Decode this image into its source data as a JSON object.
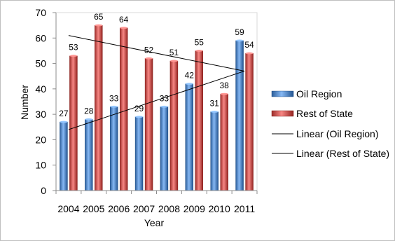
{
  "chart_data": {
    "type": "bar",
    "title": "",
    "xlabel": "Year",
    "ylabel": "Number",
    "categories": [
      "2004",
      "2005",
      "2006",
      "2007",
      "2008",
      "2009",
      "2010",
      "2011"
    ],
    "ylim": [
      0,
      70
    ],
    "yticks": [
      0,
      10,
      20,
      30,
      40,
      50,
      60,
      70
    ],
    "grid": false,
    "legend_position": "right",
    "series": [
      {
        "name": "Oil Region",
        "color": "#4f81bd",
        "values": [
          27,
          28,
          33,
          29,
          33,
          42,
          31,
          59
        ]
      },
      {
        "name": "Rest of State",
        "color": "#c0504d",
        "values": [
          53,
          65,
          64,
          52,
          51,
          55,
          38,
          54
        ]
      }
    ],
    "trendlines": [
      {
        "name": "Linear (Oil Region)",
        "series": "Oil Region",
        "type": "linear",
        "start": 24,
        "end": 47,
        "color": "#000000"
      },
      {
        "name": "Linear (Rest of State)",
        "series": "Rest of State",
        "type": "linear",
        "start": 61,
        "end": 47,
        "color": "#000000"
      }
    ]
  }
}
